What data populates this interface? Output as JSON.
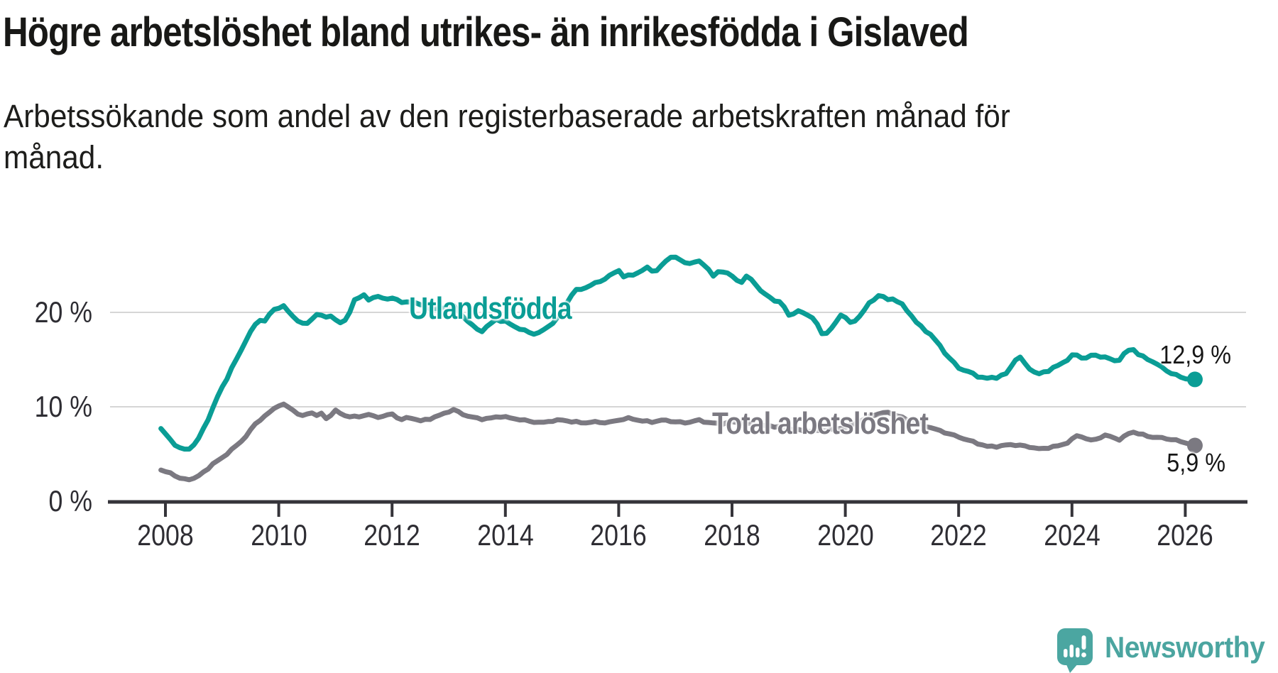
{
  "title": "Högre arbetslöshet bland utrikes- än inrikesfödda i Gislaved",
  "subtitle": {
    "lines": [
      "Arbetssökande som andel av den registerbaserade arbetskraften månad för",
      "månad."
    ]
  },
  "colors": {
    "accent_teal": "#0a9d95",
    "accent_gray": "#7b7981",
    "axis": "#35343a",
    "gridline": "#d6d6d6",
    "text_dark": "#181816",
    "tick_text": "#2e2d33",
    "logo_teal": "#4ba6a1"
  },
  "chart_data": {
    "type": "line",
    "title": "Högre arbetslöshet bland utrikes- än inrikesfödda i Gislaved",
    "subtitle": "Arbetssökande som andel av den registerbaserade arbetskraften månad för månad.",
    "unit": "%",
    "grid": "horizontal-only",
    "legend_position": "inline-labels",
    "x_axis": {
      "range": [
        2007.9,
        2026.6
      ],
      "tick_years": [
        2008,
        2010,
        2012,
        2014,
        2016,
        2018,
        2020,
        2022,
        2024,
        2026
      ],
      "tick_labels": [
        "2008",
        "2010",
        "2012",
        "2014",
        "2016",
        "2018",
        "2020",
        "2022",
        "2024",
        "2026"
      ]
    },
    "y_axis": {
      "range": [
        0,
        27.5
      ],
      "gridline_values": [
        10,
        20
      ],
      "ticks": [
        {
          "value": 0,
          "label": "0 %"
        },
        {
          "value": 10,
          "label": "10 %"
        },
        {
          "value": 20,
          "label": "20 %"
        }
      ]
    },
    "series": [
      {
        "name": "Utlandsfödda",
        "color": "#0a9d95",
        "end_label": "12,9 %",
        "end_value": 12.9,
        "jitter": 0.13,
        "points": [
          [
            2007.92,
            7.7
          ],
          [
            2008.0,
            7.1
          ],
          [
            2008.17,
            6.0
          ],
          [
            2008.3,
            5.4
          ],
          [
            2008.42,
            5.6
          ],
          [
            2008.55,
            6.2
          ],
          [
            2008.65,
            7.4
          ],
          [
            2008.75,
            8.7
          ],
          [
            2008.85,
            10.0
          ],
          [
            2008.95,
            11.5
          ],
          [
            2009.1,
            13.2
          ],
          [
            2009.25,
            15.0
          ],
          [
            2009.4,
            16.8
          ],
          [
            2009.55,
            18.4
          ],
          [
            2009.65,
            19.3
          ],
          [
            2009.75,
            19.0
          ],
          [
            2009.85,
            19.9
          ],
          [
            2009.95,
            20.5
          ],
          [
            2010.1,
            20.6
          ],
          [
            2010.2,
            19.9
          ],
          [
            2010.3,
            19.3
          ],
          [
            2010.45,
            18.6
          ],
          [
            2010.6,
            19.4
          ],
          [
            2010.7,
            19.9
          ],
          [
            2010.8,
            19.4
          ],
          [
            2010.9,
            19.8
          ],
          [
            2011.05,
            18.8
          ],
          [
            2011.2,
            19.3
          ],
          [
            2011.35,
            21.4
          ],
          [
            2011.5,
            21.9
          ],
          [
            2011.6,
            21.2
          ],
          [
            2011.75,
            21.8
          ],
          [
            2011.9,
            21.3
          ],
          [
            2012.05,
            21.6
          ],
          [
            2012.2,
            20.9
          ],
          [
            2012.35,
            21.2
          ],
          [
            2012.5,
            20.8
          ],
          [
            2012.65,
            20.5
          ],
          [
            2012.8,
            20.3
          ],
          [
            2012.95,
            20.5
          ],
          [
            2013.05,
            20.9
          ],
          [
            2013.2,
            19.9
          ],
          [
            2013.35,
            19.0
          ],
          [
            2013.55,
            17.9
          ],
          [
            2013.7,
            18.6
          ],
          [
            2013.85,
            19.3
          ],
          [
            2014.0,
            19.0
          ],
          [
            2014.2,
            18.4
          ],
          [
            2014.4,
            17.9
          ],
          [
            2014.55,
            17.7
          ],
          [
            2014.7,
            18.2
          ],
          [
            2014.85,
            19.0
          ],
          [
            2015.0,
            19.8
          ],
          [
            2015.1,
            21.2
          ],
          [
            2015.2,
            22.2
          ],
          [
            2015.4,
            22.6
          ],
          [
            2015.6,
            23.1
          ],
          [
            2015.8,
            23.7
          ],
          [
            2016.0,
            24.5
          ],
          [
            2016.1,
            23.7
          ],
          [
            2016.3,
            24.1
          ],
          [
            2016.5,
            24.7
          ],
          [
            2016.65,
            24.3
          ],
          [
            2016.8,
            25.2
          ],
          [
            2016.95,
            26.1
          ],
          [
            2017.1,
            25.4
          ],
          [
            2017.25,
            25.2
          ],
          [
            2017.4,
            25.4
          ],
          [
            2017.55,
            25.0
          ],
          [
            2017.65,
            23.7
          ],
          [
            2017.8,
            24.5
          ],
          [
            2017.9,
            24.2
          ],
          [
            2018.05,
            23.6
          ],
          [
            2018.15,
            23.1
          ],
          [
            2018.25,
            23.8
          ],
          [
            2018.4,
            23.2
          ],
          [
            2018.5,
            22.3
          ],
          [
            2018.65,
            21.6
          ],
          [
            2018.8,
            21.2
          ],
          [
            2018.9,
            20.8
          ],
          [
            2019.0,
            19.7
          ],
          [
            2019.15,
            20.1
          ],
          [
            2019.3,
            19.9
          ],
          [
            2019.45,
            19.3
          ],
          [
            2019.6,
            17.6
          ],
          [
            2019.75,
            18.2
          ],
          [
            2019.95,
            20.0
          ],
          [
            2020.1,
            18.7
          ],
          [
            2020.25,
            19.6
          ],
          [
            2020.4,
            20.8
          ],
          [
            2020.6,
            21.9
          ],
          [
            2020.75,
            21.3
          ],
          [
            2020.85,
            21.5
          ],
          [
            2021.0,
            20.8
          ],
          [
            2021.15,
            19.8
          ],
          [
            2021.3,
            18.6
          ],
          [
            2021.5,
            17.7
          ],
          [
            2021.65,
            16.6
          ],
          [
            2021.8,
            15.4
          ],
          [
            2022.0,
            14.1
          ],
          [
            2022.15,
            13.8
          ],
          [
            2022.3,
            13.3
          ],
          [
            2022.5,
            13.0
          ],
          [
            2022.65,
            13.1
          ],
          [
            2022.85,
            13.5
          ],
          [
            2023.05,
            15.5
          ],
          [
            2023.2,
            14.3
          ],
          [
            2023.4,
            13.4
          ],
          [
            2023.6,
            13.9
          ],
          [
            2023.8,
            14.5
          ],
          [
            2024.05,
            15.6
          ],
          [
            2024.2,
            15.1
          ],
          [
            2024.4,
            15.5
          ],
          [
            2024.6,
            15.2
          ],
          [
            2024.8,
            14.8
          ],
          [
            2025.05,
            16.3
          ],
          [
            2025.2,
            15.4
          ],
          [
            2025.4,
            14.9
          ],
          [
            2025.6,
            14.1
          ],
          [
            2025.8,
            13.4
          ],
          [
            2026.0,
            13.0
          ],
          [
            2026.17,
            12.9
          ]
        ]
      },
      {
        "name": "Total arbetslöshet",
        "color": "#7b7981",
        "end_label": "5,9 %",
        "end_value": 5.9,
        "jitter": 0.09,
        "points": [
          [
            2007.92,
            3.3
          ],
          [
            2008.0,
            3.1
          ],
          [
            2008.1,
            3.0
          ],
          [
            2008.25,
            2.4
          ],
          [
            2008.4,
            2.3
          ],
          [
            2008.55,
            2.5
          ],
          [
            2008.7,
            3.2
          ],
          [
            2008.85,
            4.0
          ],
          [
            2009.0,
            4.6
          ],
          [
            2009.2,
            5.6
          ],
          [
            2009.4,
            6.7
          ],
          [
            2009.6,
            8.3
          ],
          [
            2009.8,
            9.2
          ],
          [
            2009.95,
            10.0
          ],
          [
            2010.05,
            10.3
          ],
          [
            2010.2,
            9.9
          ],
          [
            2010.35,
            9.2
          ],
          [
            2010.45,
            8.9
          ],
          [
            2010.55,
            9.6
          ],
          [
            2010.65,
            9.0
          ],
          [
            2010.75,
            9.3
          ],
          [
            2010.85,
            8.7
          ],
          [
            2011.0,
            9.6
          ],
          [
            2011.15,
            9.1
          ],
          [
            2011.3,
            8.9
          ],
          [
            2011.45,
            9.0
          ],
          [
            2011.6,
            9.2
          ],
          [
            2011.7,
            8.9
          ],
          [
            2011.85,
            9.0
          ],
          [
            2012.0,
            9.25
          ],
          [
            2012.15,
            8.6
          ],
          [
            2012.3,
            8.9
          ],
          [
            2012.5,
            8.5
          ],
          [
            2012.65,
            8.7
          ],
          [
            2012.8,
            9.0
          ],
          [
            2013.0,
            9.5
          ],
          [
            2013.1,
            9.7
          ],
          [
            2013.25,
            9.2
          ],
          [
            2013.4,
            8.9
          ],
          [
            2013.6,
            8.7
          ],
          [
            2013.75,
            8.8
          ],
          [
            2013.9,
            9.0
          ],
          [
            2014.1,
            8.8
          ],
          [
            2014.3,
            8.6
          ],
          [
            2014.5,
            8.4
          ],
          [
            2014.65,
            8.3
          ],
          [
            2014.8,
            8.5
          ],
          [
            2015.0,
            8.6
          ],
          [
            2015.2,
            8.4
          ],
          [
            2015.4,
            8.3
          ],
          [
            2015.6,
            8.4
          ],
          [
            2015.8,
            8.3
          ],
          [
            2016.0,
            8.6
          ],
          [
            2016.2,
            8.8
          ],
          [
            2016.4,
            8.5
          ],
          [
            2016.6,
            8.4
          ],
          [
            2016.8,
            8.6
          ],
          [
            2017.0,
            8.4
          ],
          [
            2017.2,
            8.3
          ],
          [
            2017.4,
            8.6
          ],
          [
            2017.6,
            8.3
          ],
          [
            2017.8,
            8.2
          ],
          [
            2018.0,
            8.4
          ],
          [
            2018.2,
            8.3
          ],
          [
            2018.4,
            8.1
          ],
          [
            2018.6,
            8.0
          ],
          [
            2018.8,
            7.9
          ],
          [
            2019.0,
            7.7
          ],
          [
            2019.2,
            7.5
          ],
          [
            2019.4,
            7.4
          ],
          [
            2019.6,
            7.5
          ],
          [
            2019.8,
            7.6
          ],
          [
            2020.0,
            7.8
          ],
          [
            2020.2,
            8.3
          ],
          [
            2020.4,
            8.9
          ],
          [
            2020.6,
            9.3
          ],
          [
            2020.75,
            9.4
          ],
          [
            2020.9,
            9.1
          ],
          [
            2021.1,
            8.6
          ],
          [
            2021.3,
            8.2
          ],
          [
            2021.5,
            7.8
          ],
          [
            2021.7,
            7.4
          ],
          [
            2021.9,
            7.0
          ],
          [
            2022.1,
            6.6
          ],
          [
            2022.3,
            6.2
          ],
          [
            2022.5,
            5.8
          ],
          [
            2022.7,
            5.8
          ],
          [
            2022.9,
            6.0
          ],
          [
            2023.1,
            5.9
          ],
          [
            2023.3,
            5.7
          ],
          [
            2023.45,
            5.5
          ],
          [
            2023.6,
            5.7
          ],
          [
            2023.8,
            5.9
          ],
          [
            2023.95,
            6.3
          ],
          [
            2024.1,
            7.0
          ],
          [
            2024.35,
            6.4
          ],
          [
            2024.6,
            7.0
          ],
          [
            2024.85,
            6.5
          ],
          [
            2025.05,
            7.4
          ],
          [
            2025.2,
            7.1
          ],
          [
            2025.4,
            6.8
          ],
          [
            2025.6,
            6.7
          ],
          [
            2025.8,
            6.5
          ],
          [
            2026.0,
            6.2
          ],
          [
            2026.17,
            5.9
          ]
        ]
      }
    ]
  },
  "branding": {
    "logo_text": "Newsworthy"
  }
}
